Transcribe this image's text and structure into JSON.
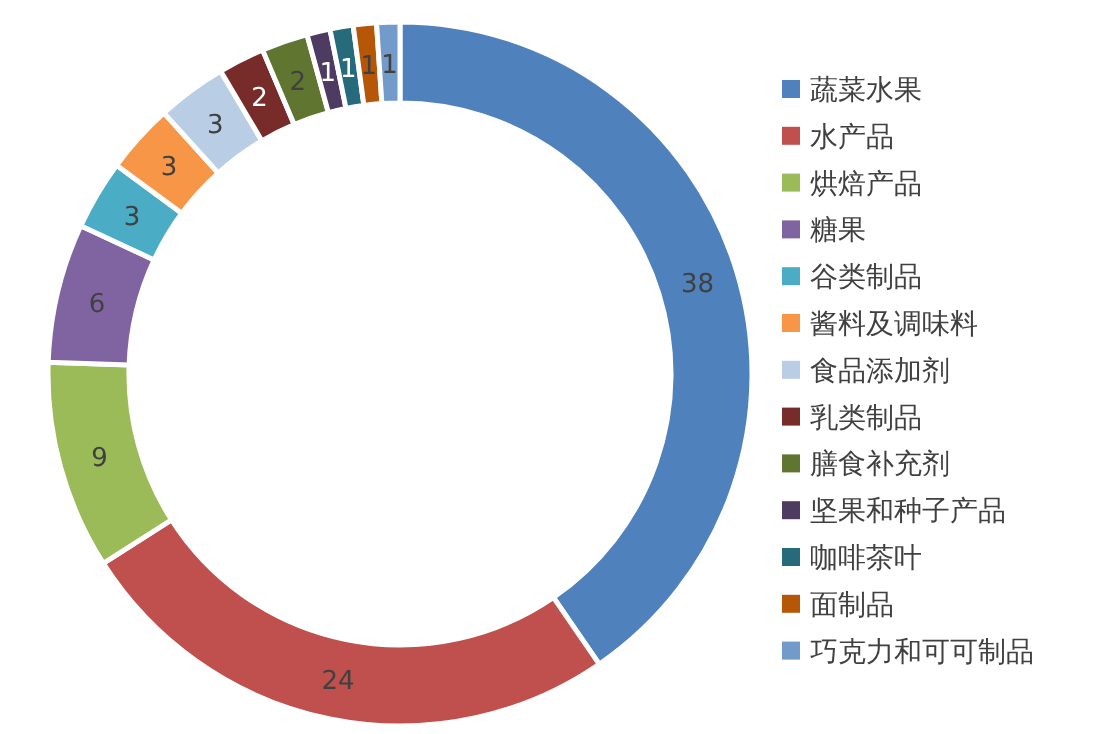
{
  "chart_data": {
    "type": "donut",
    "categories": [
      "蔬菜水果",
      "水产品",
      "烘焙产品",
      "糖果",
      "谷类制品",
      "酱料及调味料",
      "食品添加剂",
      "乳类制品",
      "膳食补充剂",
      "坚果和种子产品",
      "咖啡茶叶",
      "面制品",
      "巧克力和可可制品"
    ],
    "values": [
      38,
      24,
      9,
      6,
      3,
      3,
      3,
      2,
      2,
      1,
      1,
      1,
      1
    ],
    "colors": [
      "#4f81bd",
      "#c0504d",
      "#9bbb59",
      "#8064a2",
      "#4bacc6",
      "#f79646",
      "#b9cde5",
      "#772c2a",
      "#5f7530",
      "#4d3b62",
      "#276a7c",
      "#b65708",
      "#729aca"
    ],
    "data_labels": true,
    "legend": "right"
  }
}
